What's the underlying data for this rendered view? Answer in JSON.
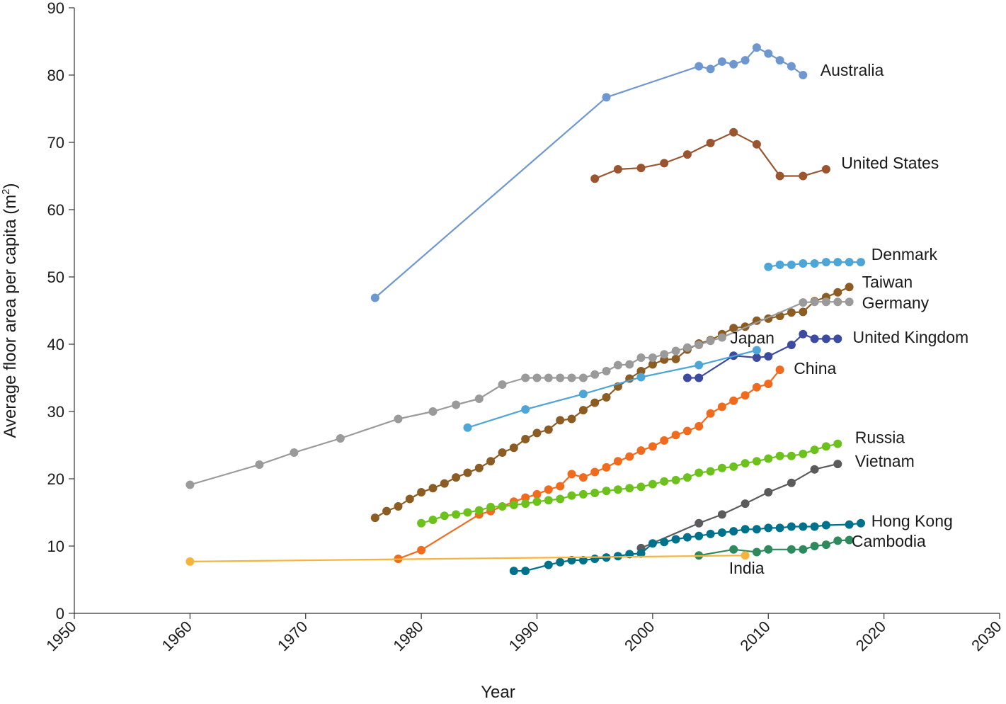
{
  "chart_data": {
    "type": "line",
    "title": "",
    "xlabel": "Year",
    "ylabel_prefix": "Average floor area per capita (m",
    "ylabel_sup": "2",
    "ylabel_suffix": ")",
    "xlim": [
      1950,
      2030
    ],
    "ylim": [
      0,
      90
    ],
    "x_ticks": [
      1950,
      1960,
      1970,
      1980,
      1990,
      2000,
      2010,
      2020,
      2030
    ],
    "y_ticks": [
      0,
      10,
      20,
      30,
      40,
      50,
      60,
      70,
      80,
      90
    ],
    "grid": false,
    "legend": "none (series labeled directly at line ends)",
    "series": [
      {
        "name": "Australia",
        "color": "#6f97cf",
        "x": [
          1976,
          1996,
          2004,
          2005,
          2006,
          2007,
          2008,
          2009,
          2010,
          2011,
          2012,
          2013
        ],
        "y": [
          46.9,
          76.7,
          81.3,
          80.9,
          82.0,
          81.6,
          82.2,
          84.1,
          83.2,
          82.2,
          81.3,
          80.0
        ]
      },
      {
        "name": "United States",
        "color": "#9a5530",
        "x": [
          1995,
          1997,
          1999,
          2001,
          2003,
          2005,
          2007,
          2009,
          2011,
          2013,
          2015
        ],
        "y": [
          64.6,
          66.0,
          66.2,
          66.9,
          68.2,
          69.9,
          71.5,
          69.7,
          65.0,
          65.0,
          66.0
        ]
      },
      {
        "name": "Denmark",
        "color": "#4ea6d6",
        "x": [
          2010,
          2011,
          2012,
          2013,
          2014,
          2015,
          2016,
          2017,
          2018
        ],
        "y": [
          51.5,
          51.8,
          51.8,
          52.0,
          52.0,
          52.2,
          52.2,
          52.2,
          52.2
        ]
      },
      {
        "name": "Taiwan",
        "color": "#8b5c24",
        "x": [
          1976,
          1977,
          1978,
          1979,
          1980,
          1981,
          1982,
          1983,
          1984,
          1985,
          1986,
          1987,
          1988,
          1989,
          1990,
          1991,
          1992,
          1993,
          1994,
          1995,
          1996,
          1997,
          1998,
          1999,
          2000,
          2001,
          2002,
          2003,
          2004,
          2005,
          2006,
          2007,
          2008,
          2009,
          2010,
          2011,
          2012,
          2013,
          2014,
          2015,
          2016,
          2017
        ],
        "y": [
          14.2,
          15.2,
          15.9,
          17.0,
          18.0,
          18.6,
          19.3,
          20.2,
          20.9,
          21.6,
          22.6,
          23.9,
          24.6,
          25.9,
          26.8,
          27.3,
          28.7,
          28.9,
          30.2,
          31.3,
          32.1,
          33.7,
          34.9,
          36.0,
          37.0,
          37.7,
          37.8,
          39.2,
          40.1,
          40.6,
          41.5,
          42.4,
          42.6,
          43.5,
          43.8,
          44.2,
          44.7,
          44.8,
          46.4,
          47.0,
          47.7,
          48.5
        ]
      },
      {
        "name": "Germany",
        "color": "#9a9a9a",
        "x": [
          1960,
          1966,
          1969,
          1973,
          1978,
          1981,
          1983,
          1985,
          1987,
          1989,
          1990,
          1991,
          1992,
          1993,
          1994,
          1995,
          1996,
          1997,
          1998,
          1999,
          2000,
          2001,
          2002,
          2003,
          2004,
          2005,
          2006,
          2013,
          2014,
          2015,
          2016,
          2017
        ],
        "y": [
          19.1,
          22.1,
          23.9,
          26.0,
          28.9,
          30.0,
          31.0,
          31.9,
          34.0,
          35.0,
          35.0,
          35.0,
          35.0,
          35.0,
          35.0,
          35.5,
          36.0,
          36.9,
          37.0,
          38.0,
          38.0,
          38.5,
          39.0,
          39.5,
          39.9,
          40.5,
          41.0,
          46.2,
          46.3,
          46.3,
          46.3,
          46.3
        ]
      },
      {
        "name": "United Kingdom",
        "color": "#3c4aa0",
        "x": [
          2003,
          2004,
          2007,
          2009,
          2010,
          2012,
          2013,
          2014,
          2015,
          2016
        ],
        "y": [
          35.0,
          35.0,
          38.3,
          38.0,
          38.2,
          39.9,
          41.5,
          40.8,
          40.8,
          40.8
        ]
      },
      {
        "name": "Japan",
        "color": "#4ea6d6",
        "x": [
          1984,
          1989,
          1994,
          1999,
          2004,
          2009
        ],
        "y": [
          27.6,
          30.3,
          32.6,
          35.1,
          36.9,
          39.1
        ]
      },
      {
        "name": "China",
        "color": "#f06b1e",
        "x": [
          1978,
          1980,
          1985,
          1986,
          1988,
          1989,
          1990,
          1991,
          1992,
          1993,
          1994,
          1995,
          1996,
          1997,
          1998,
          1999,
          2000,
          2001,
          2002,
          2003,
          2004,
          2005,
          2006,
          2007,
          2008,
          2009,
          2010,
          2011
        ],
        "y": [
          8.1,
          9.4,
          14.7,
          15.2,
          16.6,
          17.2,
          17.7,
          18.4,
          18.9,
          20.7,
          20.2,
          21.0,
          21.7,
          22.6,
          23.3,
          24.2,
          24.8,
          25.7,
          26.5,
          27.1,
          27.8,
          29.7,
          30.7,
          31.6,
          32.4,
          33.6,
          34.1,
          36.2
        ]
      },
      {
        "name": "Russia",
        "color": "#6cc11d",
        "x": [
          1980,
          1981,
          1982,
          1983,
          1984,
          1985,
          1986,
          1987,
          1988,
          1989,
          1990,
          1991,
          1992,
          1993,
          1994,
          1995,
          1996,
          1997,
          1998,
          1999,
          2000,
          2001,
          2002,
          2003,
          2004,
          2005,
          2006,
          2007,
          2008,
          2009,
          2010,
          2011,
          2012,
          2013,
          2014,
          2015,
          2016
        ],
        "y": [
          13.4,
          13.9,
          14.5,
          14.7,
          15.0,
          15.3,
          15.8,
          15.9,
          16.1,
          16.3,
          16.6,
          16.8,
          17.0,
          17.5,
          17.7,
          17.9,
          18.2,
          18.4,
          18.6,
          18.8,
          19.2,
          19.6,
          19.8,
          20.2,
          20.9,
          21.1,
          21.6,
          21.8,
          22.3,
          22.6,
          23.0,
          23.4,
          23.4,
          23.7,
          24.3,
          24.8,
          25.2
        ]
      },
      {
        "name": "Vietnam",
        "color": "#5b5b5b",
        "x": [
          1999,
          2004,
          2006,
          2008,
          2010,
          2012,
          2014,
          2016
        ],
        "y": [
          9.7,
          13.4,
          14.7,
          16.3,
          18.0,
          19.4,
          21.4,
          22.2
        ]
      },
      {
        "name": "Hong Kong",
        "color": "#00718a",
        "x": [
          1988,
          1989,
          1991,
          1992,
          1993,
          1994,
          1995,
          1996,
          1997,
          1998,
          1999,
          2000,
          2001,
          2002,
          2003,
          2004,
          2005,
          2006,
          2007,
          2008,
          2009,
          2010,
          2011,
          2012,
          2013,
          2014,
          2015,
          2017,
          2018
        ],
        "y": [
          6.3,
          6.3,
          7.2,
          7.6,
          7.9,
          7.9,
          8.1,
          8.3,
          8.5,
          8.8,
          8.9,
          10.4,
          10.6,
          11.0,
          11.3,
          11.5,
          11.8,
          12.0,
          12.2,
          12.5,
          12.5,
          12.7,
          12.7,
          12.9,
          12.9,
          12.9,
          13.1,
          13.2,
          13.4
        ]
      },
      {
        "name": "Cambodia",
        "color": "#2e8a5c",
        "x": [
          2004,
          2007,
          2009,
          2010,
          2012,
          2013,
          2014,
          2015,
          2016,
          2017
        ],
        "y": [
          8.6,
          9.5,
          9.1,
          9.5,
          9.5,
          9.5,
          10.0,
          10.2,
          10.8,
          10.9
        ]
      },
      {
        "name": "India",
        "color": "#f6b43c",
        "x": [
          1960,
          2008
        ],
        "y": [
          7.7,
          8.6
        ]
      }
    ]
  },
  "labels": [
    {
      "series": "Australia",
      "text": "Australia",
      "ax": 2014.5,
      "ay": 79.9
    },
    {
      "series": "United States",
      "text": "United States",
      "ax": 2016.3,
      "ay": 66.1
    },
    {
      "series": "Denmark",
      "text": "Denmark",
      "ax": 2018.9,
      "ay": 52.5
    },
    {
      "series": "Taiwan",
      "text": "Taiwan",
      "ax": 2018.1,
      "ay": 48.4
    },
    {
      "series": "Germany",
      "text": "Germany",
      "ax": 2018.1,
      "ay": 45.3
    },
    {
      "series": "United Kingdom",
      "text": "United Kingdom",
      "ax": 2017.3,
      "ay": 40.2
    },
    {
      "series": "Japan",
      "text": "Japan",
      "ax": 2006.7,
      "ay": 40.1
    },
    {
      "series": "China",
      "text": "China",
      "ax": 2012.2,
      "ay": 35.6
    },
    {
      "series": "Russia",
      "text": "Russia",
      "ax": 2017.5,
      "ay": 25.3
    },
    {
      "series": "Vietnam",
      "text": "Vietnam",
      "ax": 2017.5,
      "ay": 21.8
    },
    {
      "series": "Hong Kong",
      "text": "Hong Kong",
      "ax": 2018.9,
      "ay": 12.9
    },
    {
      "series": "Cambodia",
      "text": "Cambodia",
      "ax": 2017.2,
      "ay": 9.9
    },
    {
      "series": "India",
      "text": "India",
      "ax": 2006.6,
      "ay": 5.9
    }
  ]
}
